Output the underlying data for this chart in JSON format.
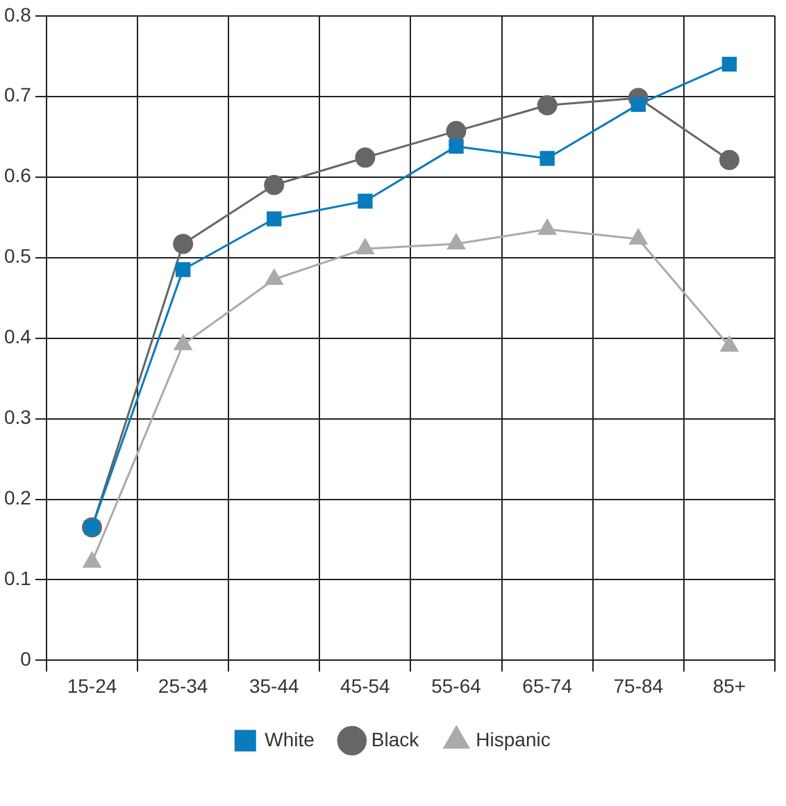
{
  "chart_data": {
    "type": "line",
    "categories": [
      "15-24",
      "25-34",
      "35-44",
      "45-54",
      "55-64",
      "65-74",
      "75-84",
      "85+"
    ],
    "series": [
      {
        "name": "White",
        "color": "#0a7bbd",
        "marker": "square",
        "values": [
          0.165,
          0.485,
          0.548,
          0.57,
          0.638,
          0.623,
          0.69,
          0.74
        ]
      },
      {
        "name": "Black",
        "color": "#666666",
        "marker": "circle",
        "values": [
          0.165,
          0.517,
          0.59,
          0.624,
          0.657,
          0.689,
          0.698,
          0.621
        ]
      },
      {
        "name": "Hispanic",
        "color": "#aaaaaa",
        "marker": "triangle",
        "values": [
          0.122,
          0.392,
          0.473,
          0.511,
          0.517,
          0.535,
          0.523,
          0.39
        ]
      }
    ],
    "ylim": [
      0,
      0.8
    ],
    "yticks": [
      0,
      0.1,
      0.2,
      0.3,
      0.4,
      0.5,
      0.6,
      0.7,
      0.8
    ],
    "grid": true,
    "legend": "bottom",
    "line_style": "solid"
  }
}
